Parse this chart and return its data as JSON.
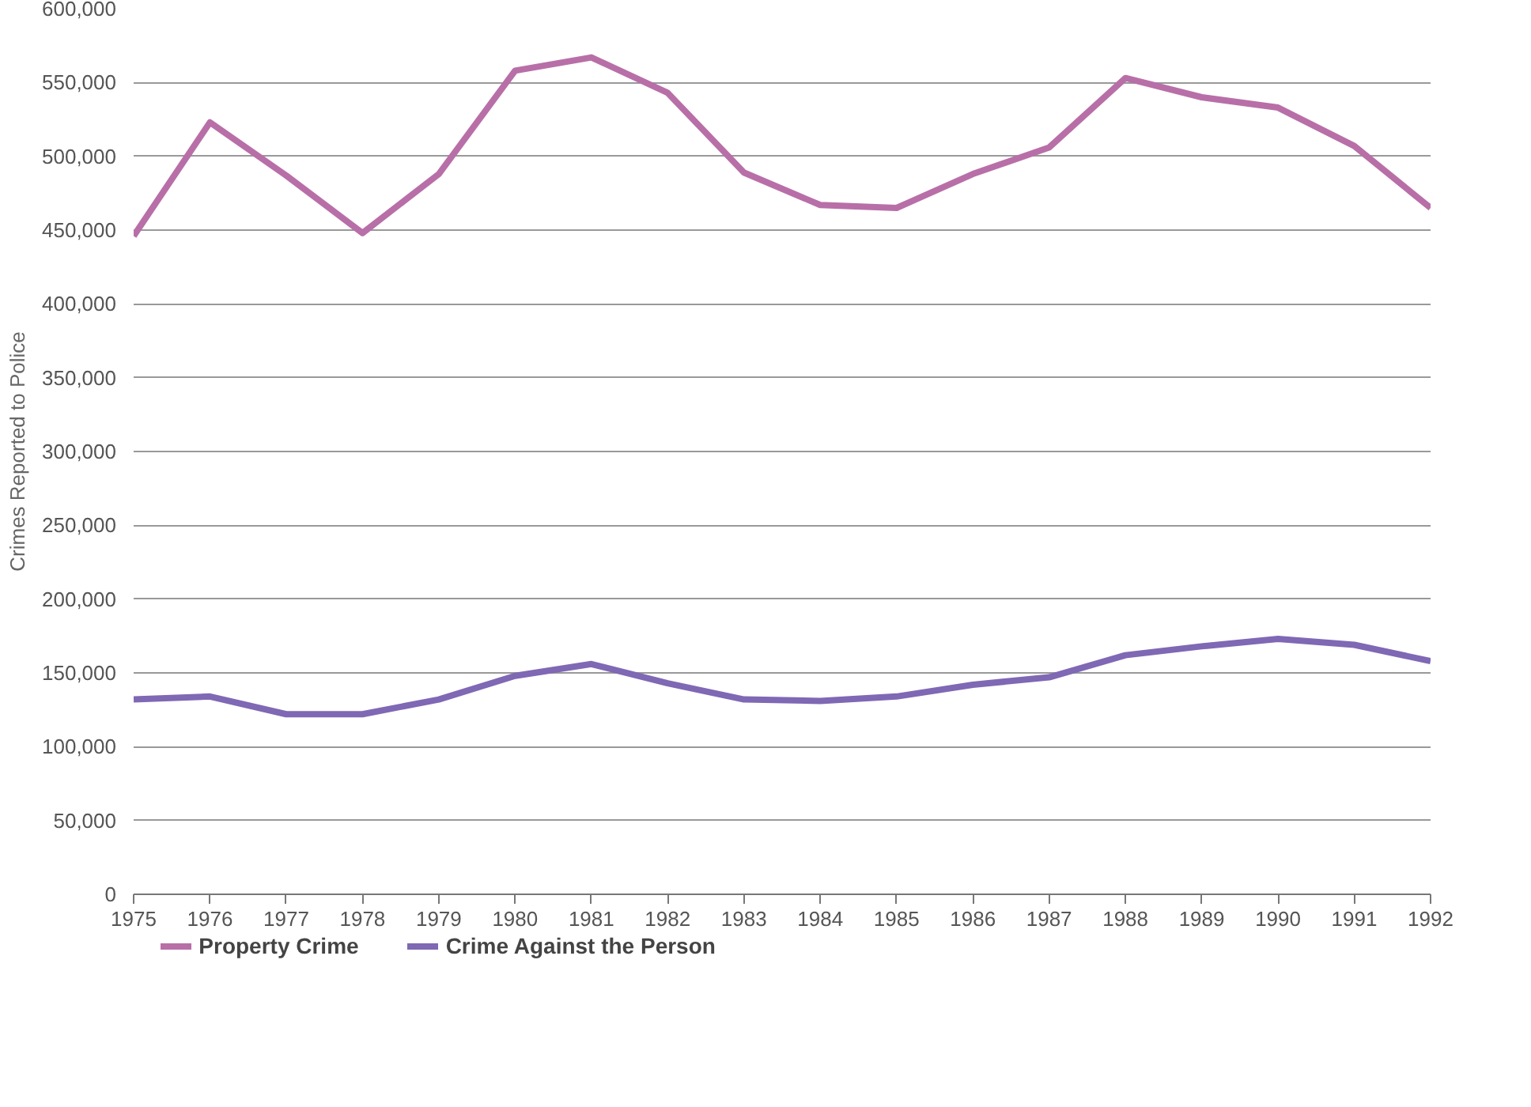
{
  "chart_data": {
    "type": "line",
    "ylabel": "Crimes Reported to Police",
    "x": [
      1975,
      1976,
      1977,
      1978,
      1979,
      1980,
      1981,
      1982,
      1983,
      1984,
      1985,
      1986,
      1987,
      1988,
      1989,
      1990,
      1991,
      1992
    ],
    "series": [
      {
        "name": "Property Crime",
        "color": "#b86fa8",
        "values": [
          446000,
          523000,
          487000,
          448000,
          488000,
          558000,
          567000,
          543000,
          489000,
          467000,
          465000,
          488000,
          506000,
          553000,
          540000,
          533000,
          507000,
          465000
        ]
      },
      {
        "name": "Crime Against the Person",
        "color": "#7f68b4",
        "values": [
          132000,
          134000,
          122000,
          122000,
          132000,
          148000,
          156000,
          143000,
          132000,
          131000,
          134000,
          142000,
          147000,
          162000,
          168000,
          173000,
          169000,
          158000
        ]
      }
    ],
    "xlim": [
      1975,
      1992
    ],
    "xticks": [
      1975,
      1976,
      1977,
      1978,
      1979,
      1980,
      1981,
      1982,
      1983,
      1984,
      1985,
      1986,
      1987,
      1988,
      1989,
      1990,
      1991,
      1992
    ],
    "ylim": [
      0,
      600000
    ],
    "yticks": [
      {
        "value": 0,
        "label": "0"
      },
      {
        "value": 50000,
        "label": "50,000"
      },
      {
        "value": 100000,
        "label": "100,000"
      },
      {
        "value": 150000,
        "label": "150,000"
      },
      {
        "value": 200000,
        "label": "200,000"
      },
      {
        "value": 250000,
        "label": "250,000"
      },
      {
        "value": 300000,
        "label": "300,000"
      },
      {
        "value": 350000,
        "label": "350,000"
      },
      {
        "value": 400000,
        "label": "400,000"
      },
      {
        "value": 450000,
        "label": "450,000"
      },
      {
        "value": 500000,
        "label": "500,000"
      },
      {
        "value": 550000,
        "label": "550,000"
      },
      {
        "value": 600000,
        "label": "600,000"
      }
    ],
    "grid": "y",
    "legend": "bottom left",
    "line_style": "solid",
    "marker": "none"
  }
}
